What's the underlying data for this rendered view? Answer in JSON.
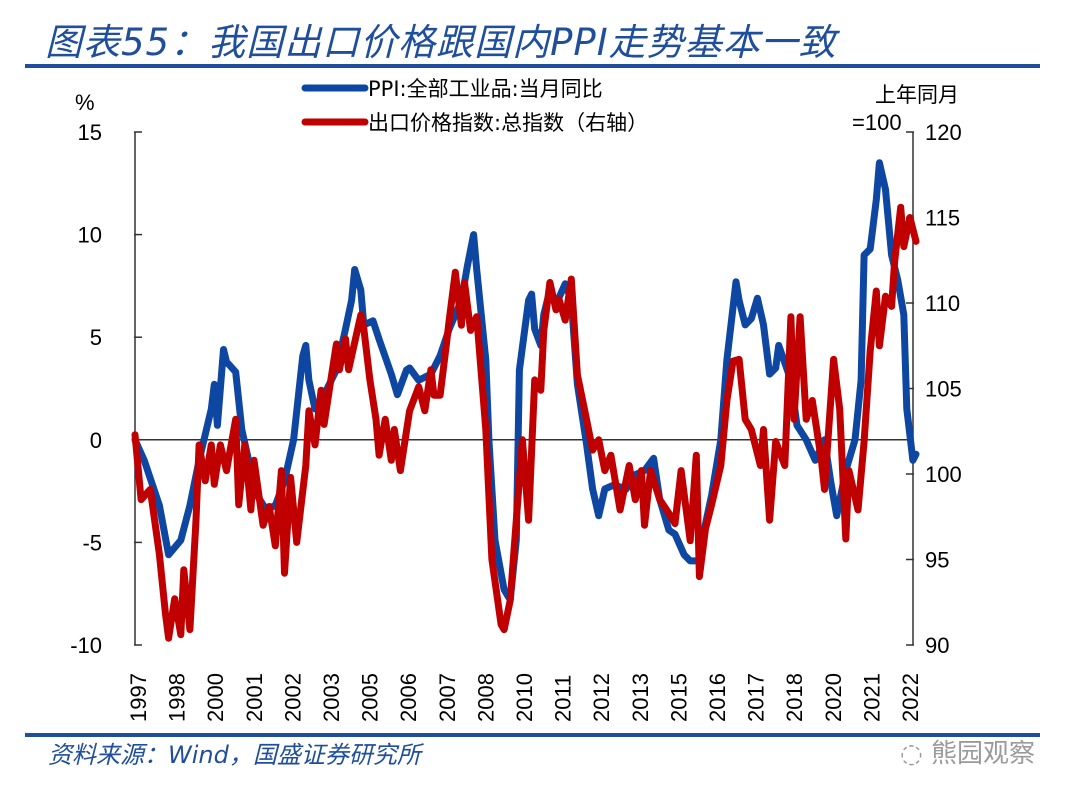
{
  "title": "图表55：我国出口价格跟国内PPI走势基本一致",
  "source": "资料来源：Wind，国盛证券研究所",
  "watermark": "熊园观察",
  "colors": {
    "ppi": "#0d47a1",
    "export": "#c00000",
    "title": "#1f4e9c"
  },
  "chart_data": {
    "type": "line",
    "left_axis": {
      "unit": "%",
      "ylim": [
        -10,
        15
      ],
      "ticks": [
        "15",
        "10",
        "5",
        "0",
        "-5",
        "-10"
      ]
    },
    "right_axis": {
      "unit_line1": "上年同月",
      "unit_line2": "=100",
      "ylim": [
        90,
        120
      ],
      "ticks": [
        "120",
        "115",
        "110",
        "105",
        "100",
        "95",
        "90"
      ]
    },
    "x_tick_labels": [
      "1997",
      "1998",
      "2000",
      "2001",
      "2002",
      "2003",
      "2005",
      "2006",
      "2007",
      "2008",
      "2010",
      "2011",
      "2012",
      "2013",
      "2015",
      "2016",
      "2017",
      "2018",
      "2020",
      "2021",
      "2022"
    ],
    "xlim": [
      1997.0,
      2022.6
    ],
    "legend_placement": "top-center",
    "series": [
      {
        "name": "PPI:全部工业品:当月同比",
        "axis": "left",
        "points": [
          [
            1997.0,
            0
          ],
          [
            1997.3,
            -1.0
          ],
          [
            1997.8,
            -3.2
          ],
          [
            1998.1,
            -5.6
          ],
          [
            1998.5,
            -4.9
          ],
          [
            1998.8,
            -3.2
          ],
          [
            1999.1,
            -1.0
          ],
          [
            1999.5,
            1.5
          ],
          [
            1999.6,
            2.7
          ],
          [
            1999.7,
            0.7
          ],
          [
            1999.9,
            4.4
          ],
          [
            2000.0,
            3.8
          ],
          [
            2000.3,
            3.3
          ],
          [
            2000.5,
            0.5
          ],
          [
            2000.8,
            -1.5
          ],
          [
            2001.0,
            -2.7
          ],
          [
            2001.3,
            -3.4
          ],
          [
            2001.6,
            -3.2
          ],
          [
            2001.9,
            -2.0
          ],
          [
            2002.2,
            0
          ],
          [
            2002.5,
            4.1
          ],
          [
            2002.6,
            4.6
          ],
          [
            2002.7,
            2.9
          ],
          [
            2002.9,
            1.5
          ],
          [
            2003.2,
            2.2
          ],
          [
            2003.6,
            3.4
          ],
          [
            2003.9,
            5.4
          ],
          [
            2004.1,
            6.8
          ],
          [
            2004.2,
            8.3
          ],
          [
            2004.4,
            7.3
          ],
          [
            2004.5,
            5.6
          ],
          [
            2004.8,
            5.8
          ],
          [
            2005.0,
            4.9
          ],
          [
            2005.4,
            3.2
          ],
          [
            2005.6,
            2.2
          ],
          [
            2005.9,
            3.4
          ],
          [
            2006.0,
            3.5
          ],
          [
            2006.3,
            2.9
          ],
          [
            2006.7,
            3.2
          ],
          [
            2007.0,
            4.1
          ],
          [
            2007.3,
            5.4
          ],
          [
            2007.7,
            6.8
          ],
          [
            2007.9,
            8.5
          ],
          [
            2008.1,
            10.0
          ],
          [
            2008.2,
            8.3
          ],
          [
            2008.5,
            3.9
          ],
          [
            2008.6,
            0
          ],
          [
            2008.8,
            -4.9
          ],
          [
            2009.1,
            -7.3
          ],
          [
            2009.3,
            -7.8
          ],
          [
            2009.5,
            -4.9
          ],
          [
            2009.6,
            3.4
          ],
          [
            2009.9,
            6.8
          ],
          [
            2010.0,
            7.1
          ],
          [
            2010.1,
            5.4
          ],
          [
            2010.3,
            4.6
          ],
          [
            2010.4,
            6.1
          ],
          [
            2010.6,
            7.3
          ],
          [
            2010.8,
            6.6
          ],
          [
            2011.1,
            7.6
          ],
          [
            2011.3,
            6.8
          ],
          [
            2011.5,
            2.7
          ],
          [
            2011.8,
            -0.2
          ],
          [
            2012.0,
            -2.4
          ],
          [
            2012.2,
            -3.7
          ],
          [
            2012.4,
            -2.4
          ],
          [
            2012.7,
            -2.2
          ],
          [
            2013.1,
            -2.4
          ],
          [
            2013.4,
            -1.7
          ],
          [
            2013.7,
            -1.5
          ],
          [
            2014.0,
            -0.9
          ],
          [
            2014.2,
            -2.9
          ],
          [
            2014.5,
            -4.4
          ],
          [
            2014.7,
            -4.6
          ],
          [
            2015.0,
            -5.6
          ],
          [
            2015.2,
            -5.9
          ],
          [
            2015.5,
            -5.9
          ],
          [
            2015.7,
            -4.1
          ],
          [
            2015.9,
            -2.7
          ],
          [
            2016.2,
            0
          ],
          [
            2016.4,
            3.9
          ],
          [
            2016.7,
            7.7
          ],
          [
            2016.8,
            6.8
          ],
          [
            2017.0,
            5.6
          ],
          [
            2017.2,
            5.9
          ],
          [
            2017.4,
            6.9
          ],
          [
            2017.6,
            5.6
          ],
          [
            2017.8,
            3.2
          ],
          [
            2018.0,
            3.5
          ],
          [
            2018.1,
            4.6
          ],
          [
            2018.5,
            2.9
          ],
          [
            2018.7,
            0.7
          ],
          [
            2019.0,
            0
          ],
          [
            2019.3,
            -1.0
          ],
          [
            2019.6,
            0
          ],
          [
            2019.8,
            -2.0
          ],
          [
            2020.0,
            -3.7
          ],
          [
            2020.3,
            -1.5
          ],
          [
            2020.6,
            0
          ],
          [
            2020.8,
            2.9
          ],
          [
            2020.9,
            9.0
          ],
          [
            2021.1,
            9.3
          ],
          [
            2021.3,
            11.7
          ],
          [
            2021.4,
            13.5
          ],
          [
            2021.6,
            12.2
          ],
          [
            2021.8,
            9.0
          ],
          [
            2022.0,
            7.8
          ],
          [
            2022.2,
            6.1
          ],
          [
            2022.3,
            1.5
          ],
          [
            2022.5,
            -1.0
          ],
          [
            2022.6,
            -0.7
          ]
        ]
      },
      {
        "name": "出口价格指数:总指数（右轴）",
        "axis": "right",
        "points": [
          [
            1997.0,
            102.3
          ],
          [
            1997.2,
            98.5
          ],
          [
            1997.5,
            99.1
          ],
          [
            1997.8,
            95.3
          ],
          [
            1998.0,
            91.8
          ],
          [
            1998.1,
            90.4
          ],
          [
            1998.3,
            92.7
          ],
          [
            1998.5,
            90.6
          ],
          [
            1998.6,
            94.4
          ],
          [
            1998.8,
            90.9
          ],
          [
            1999.0,
            97.3
          ],
          [
            1999.1,
            101.7
          ],
          [
            1999.3,
            99.6
          ],
          [
            1999.5,
            101.7
          ],
          [
            1999.6,
            99.4
          ],
          [
            1999.8,
            101.7
          ],
          [
            2000.0,
            100.2
          ],
          [
            2000.3,
            103.2
          ],
          [
            2000.4,
            98.2
          ],
          [
            2000.6,
            101.7
          ],
          [
            2000.8,
            97.9
          ],
          [
            2000.9,
            100.8
          ],
          [
            2001.2,
            97.0
          ],
          [
            2001.4,
            98.1
          ],
          [
            2001.6,
            95.8
          ],
          [
            2001.8,
            100.2
          ],
          [
            2001.9,
            94.2
          ],
          [
            2002.1,
            99.8
          ],
          [
            2002.3,
            96.0
          ],
          [
            2002.6,
            100.5
          ],
          [
            2002.7,
            103.7
          ],
          [
            2002.9,
            101.7
          ],
          [
            2003.1,
            104.9
          ],
          [
            2003.2,
            102.9
          ],
          [
            2003.4,
            105.3
          ],
          [
            2003.6,
            107.6
          ],
          [
            2003.7,
            106.1
          ],
          [
            2003.9,
            107.9
          ],
          [
            2004.0,
            106.1
          ],
          [
            2004.4,
            109.3
          ],
          [
            2004.5,
            108.5
          ],
          [
            2004.7,
            105.5
          ],
          [
            2004.9,
            103.2
          ],
          [
            2005.0,
            101.1
          ],
          [
            2005.2,
            103.2
          ],
          [
            2005.4,
            100.8
          ],
          [
            2005.5,
            102.6
          ],
          [
            2005.7,
            100.2
          ],
          [
            2006.0,
            103.7
          ],
          [
            2006.3,
            105.1
          ],
          [
            2006.5,
            103.7
          ],
          [
            2006.7,
            106.1
          ],
          [
            2006.8,
            104.6
          ],
          [
            2007.0,
            104.6
          ],
          [
            2007.2,
            107.5
          ],
          [
            2007.3,
            109.0
          ],
          [
            2007.5,
            111.8
          ],
          [
            2007.7,
            108.7
          ],
          [
            2007.8,
            111.2
          ],
          [
            2008.0,
            108.4
          ],
          [
            2008.2,
            109.2
          ],
          [
            2008.5,
            102.6
          ],
          [
            2008.7,
            95.0
          ],
          [
            2009.0,
            91.2
          ],
          [
            2009.1,
            90.9
          ],
          [
            2009.3,
            92.6
          ],
          [
            2009.5,
            97.3
          ],
          [
            2009.7,
            102.0
          ],
          [
            2009.9,
            97.3
          ],
          [
            2010.1,
            105.5
          ],
          [
            2010.3,
            104.9
          ],
          [
            2010.4,
            108.4
          ],
          [
            2010.6,
            111.2
          ],
          [
            2010.8,
            109.6
          ],
          [
            2010.9,
            110.2
          ],
          [
            2011.1,
            109.0
          ],
          [
            2011.3,
            111.4
          ],
          [
            2011.5,
            105.8
          ],
          [
            2011.8,
            103.2
          ],
          [
            2012.0,
            101.4
          ],
          [
            2012.2,
            102.0
          ],
          [
            2012.4,
            100.2
          ],
          [
            2012.6,
            101.1
          ],
          [
            2012.9,
            97.9
          ],
          [
            2013.2,
            100.5
          ],
          [
            2013.4,
            98.5
          ],
          [
            2013.6,
            100.2
          ],
          [
            2013.7,
            97.0
          ],
          [
            2013.9,
            100.2
          ],
          [
            2014.2,
            98.5
          ],
          [
            2014.5,
            97.7
          ],
          [
            2014.7,
            97.1
          ],
          [
            2014.9,
            100.2
          ],
          [
            2015.2,
            96.1
          ],
          [
            2015.4,
            101.1
          ],
          [
            2015.5,
            94.0
          ],
          [
            2015.7,
            96.8
          ],
          [
            2015.9,
            98.2
          ],
          [
            2016.2,
            100.5
          ],
          [
            2016.4,
            104.3
          ],
          [
            2016.6,
            106.6
          ],
          [
            2016.8,
            106.7
          ],
          [
            2017.0,
            103.2
          ],
          [
            2017.2,
            102.6
          ],
          [
            2017.5,
            100.5
          ],
          [
            2017.6,
            102.6
          ],
          [
            2017.8,
            97.3
          ],
          [
            2018.0,
            101.9
          ],
          [
            2018.3,
            100.5
          ],
          [
            2018.5,
            109.2
          ],
          [
            2018.6,
            103.2
          ],
          [
            2018.8,
            109.2
          ],
          [
            2019.0,
            103.2
          ],
          [
            2019.2,
            104.3
          ],
          [
            2019.5,
            100.8
          ],
          [
            2019.6,
            99.1
          ],
          [
            2019.9,
            106.7
          ],
          [
            2020.1,
            103.8
          ],
          [
            2020.3,
            96.2
          ],
          [
            2020.4,
            100.2
          ],
          [
            2020.7,
            97.9
          ],
          [
            2020.9,
            101.9
          ],
          [
            2021.1,
            107.2
          ],
          [
            2021.3,
            110.7
          ],
          [
            2021.4,
            107.5
          ],
          [
            2021.6,
            110.4
          ],
          [
            2021.8,
            109.8
          ],
          [
            2021.9,
            112.4
          ],
          [
            2022.1,
            115.6
          ],
          [
            2022.2,
            113.3
          ],
          [
            2022.4,
            115.0
          ],
          [
            2022.6,
            113.6
          ]
        ]
      }
    ]
  }
}
